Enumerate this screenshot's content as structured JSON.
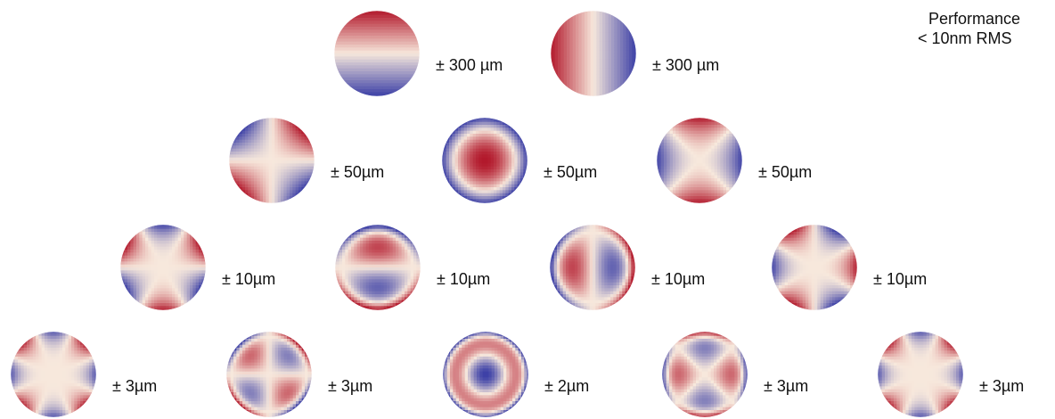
{
  "performance": {
    "line1": "Performance",
    "line2": "< 10nm RMS"
  },
  "colors": {
    "positive": "#b2182b",
    "neutral": "#f7e8dc",
    "negative": "#3b3fa6"
  },
  "rows": [
    {
      "modes": [
        {
          "pattern": "tilt-vertical",
          "amplitude": "± 300 µm"
        },
        {
          "pattern": "tilt-horizontal",
          "amplitude": "± 300 µm"
        }
      ]
    },
    {
      "modes": [
        {
          "pattern": "astigmatism-oblique",
          "amplitude": "± 50µm"
        },
        {
          "pattern": "defocus",
          "amplitude": "± 50µm"
        },
        {
          "pattern": "astigmatism-vertical",
          "amplitude": "± 50µm"
        }
      ]
    },
    {
      "modes": [
        {
          "pattern": "trefoil-a",
          "amplitude": "± 10µm"
        },
        {
          "pattern": "coma-vertical",
          "amplitude": "± 10µm"
        },
        {
          "pattern": "coma-horizontal",
          "amplitude": "± 10µm"
        },
        {
          "pattern": "trefoil-b",
          "amplitude": "± 10µm"
        }
      ]
    },
    {
      "modes": [
        {
          "pattern": "quadrafoil-a",
          "amplitude": "± 3µm"
        },
        {
          "pattern": "secondary-astigmatism-a",
          "amplitude": "± 3µm"
        },
        {
          "pattern": "spherical",
          "amplitude": "± 2µm"
        },
        {
          "pattern": "secondary-astigmatism-b",
          "amplitude": "± 3µm"
        },
        {
          "pattern": "quadrafoil-b",
          "amplitude": "± 3µm"
        }
      ]
    }
  ]
}
